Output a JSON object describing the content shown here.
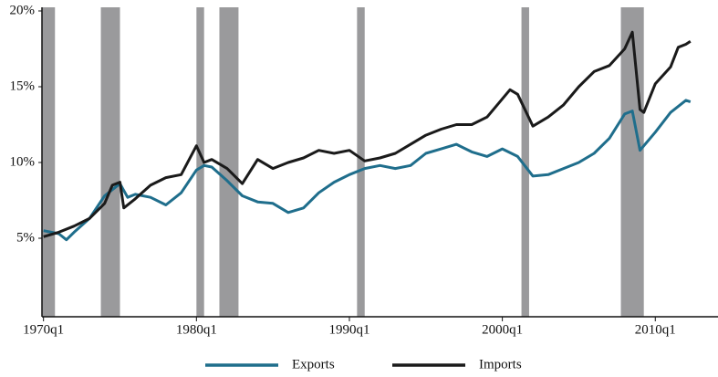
{
  "chart_data": {
    "type": "line",
    "xlim": [
      1969.9,
      2014.1
    ],
    "xticks": [
      {
        "value": 1970,
        "label": "1970q1"
      },
      {
        "value": 1980,
        "label": "1980q1"
      },
      {
        "value": 1990,
        "label": "1990q1"
      },
      {
        "value": 2000,
        "label": "2000q1"
      },
      {
        "value": 2010,
        "label": "2010q1"
      }
    ],
    "ylim": [
      0,
      20
    ],
    "yticks": [
      {
        "value": 5,
        "label": "5%"
      },
      {
        "value": 10,
        "label": "10%"
      },
      {
        "value": 15,
        "label": "15%"
      },
      {
        "value": 20,
        "label": "20%"
      }
    ],
    "shaded_periods": [
      [
        1969.9,
        1970.75
      ],
      [
        1973.75,
        1975.0
      ],
      [
        1980.0,
        1980.5
      ],
      [
        1981.5,
        1982.75
      ],
      [
        1990.5,
        1991.0
      ],
      [
        2001.25,
        2001.75
      ],
      [
        2007.75,
        2009.25
      ]
    ],
    "shade_color": "#9a9a9c",
    "legend_position": "bottom",
    "series": [
      {
        "name": "Exports",
        "color": "#1f6e8c",
        "x": [
          1970,
          1971,
          1971.5,
          1972,
          1973,
          1974,
          1975,
          1975.5,
          1976,
          1977,
          1978,
          1979,
          1980,
          1980.5,
          1981,
          1982,
          1983,
          1984,
          1985,
          1986,
          1987,
          1988,
          1989,
          1990,
          1991,
          1992,
          1993,
          1994,
          1995,
          1996,
          1997,
          1998,
          1999,
          2000,
          2001,
          2002,
          2003,
          2004,
          2005,
          2006,
          2007,
          2008,
          2008.5,
          2009,
          2010,
          2011,
          2012,
          2012.3
        ],
        "values": [
          5.5,
          5.3,
          4.9,
          5.4,
          6.3,
          7.8,
          8.6,
          7.7,
          7.9,
          7.7,
          7.2,
          8.0,
          9.5,
          9.8,
          9.7,
          8.8,
          7.8,
          7.4,
          7.3,
          6.7,
          7.0,
          8.0,
          8.7,
          9.2,
          9.6,
          9.8,
          9.6,
          9.8,
          10.6,
          10.9,
          11.2,
          10.7,
          10.4,
          10.9,
          10.4,
          9.1,
          9.2,
          9.6,
          10.0,
          10.6,
          11.6,
          13.2,
          13.4,
          10.8,
          12.0,
          13.3,
          14.1,
          14.0
        ]
      },
      {
        "name": "Imports",
        "color": "#1a1a1a",
        "x": [
          1970,
          1971,
          1972,
          1973,
          1974,
          1974.5,
          1975,
          1975.25,
          1976,
          1977,
          1978,
          1979,
          1980,
          1980.5,
          1981,
          1982,
          1983,
          1984,
          1985,
          1986,
          1987,
          1988,
          1989,
          1990,
          1991,
          1992,
          1993,
          1994,
          1995,
          1996,
          1997,
          1998,
          1999,
          2000,
          2000.5,
          2001,
          2002,
          2003,
          2004,
          2005,
          2006,
          2007,
          2008,
          2008.5,
          2009,
          2009.25,
          2010,
          2011,
          2011.5,
          2012,
          2012.3
        ],
        "values": [
          5.1,
          5.4,
          5.8,
          6.3,
          7.3,
          8.5,
          8.7,
          7.0,
          7.6,
          8.5,
          9.0,
          9.2,
          11.1,
          10.0,
          10.2,
          9.6,
          8.6,
          10.2,
          9.6,
          10.0,
          10.3,
          10.8,
          10.6,
          10.8,
          10.1,
          10.3,
          10.6,
          11.2,
          11.8,
          12.2,
          12.5,
          12.5,
          13.0,
          14.2,
          14.8,
          14.5,
          12.4,
          13.0,
          13.8,
          15.0,
          16.0,
          16.4,
          17.5,
          18.6,
          13.5,
          13.3,
          15.2,
          16.3,
          17.6,
          17.8,
          18.0
        ]
      }
    ]
  }
}
